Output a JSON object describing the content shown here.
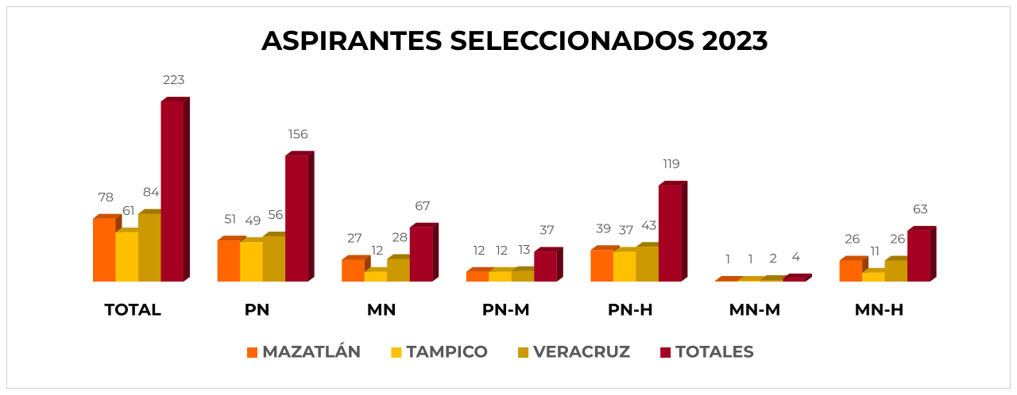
{
  "chart_data": {
    "type": "bar3d",
    "title": "ASPIRANTES SELECCIONADOS 2023",
    "categories": [
      "TOTAL",
      "PN",
      "MN",
      "PN-M",
      "PN-H",
      "MN-M",
      "MN-H"
    ],
    "series": [
      {
        "name": "MAZATLÁN",
        "color": "#ff6600",
        "values": [
          78,
          51,
          27,
          12,
          39,
          1,
          26
        ]
      },
      {
        "name": "TAMPICO",
        "color": "#ffc000",
        "values": [
          61,
          49,
          12,
          12,
          37,
          1,
          11
        ]
      },
      {
        "name": "VERACRUZ",
        "color": "#cc9900",
        "values": [
          84,
          56,
          28,
          13,
          43,
          2,
          26
        ]
      },
      {
        "name": "TOTALES",
        "color": "#a50021",
        "values": [
          223,
          156,
          67,
          37,
          119,
          4,
          63
        ]
      }
    ],
    "legend": "bottom"
  }
}
